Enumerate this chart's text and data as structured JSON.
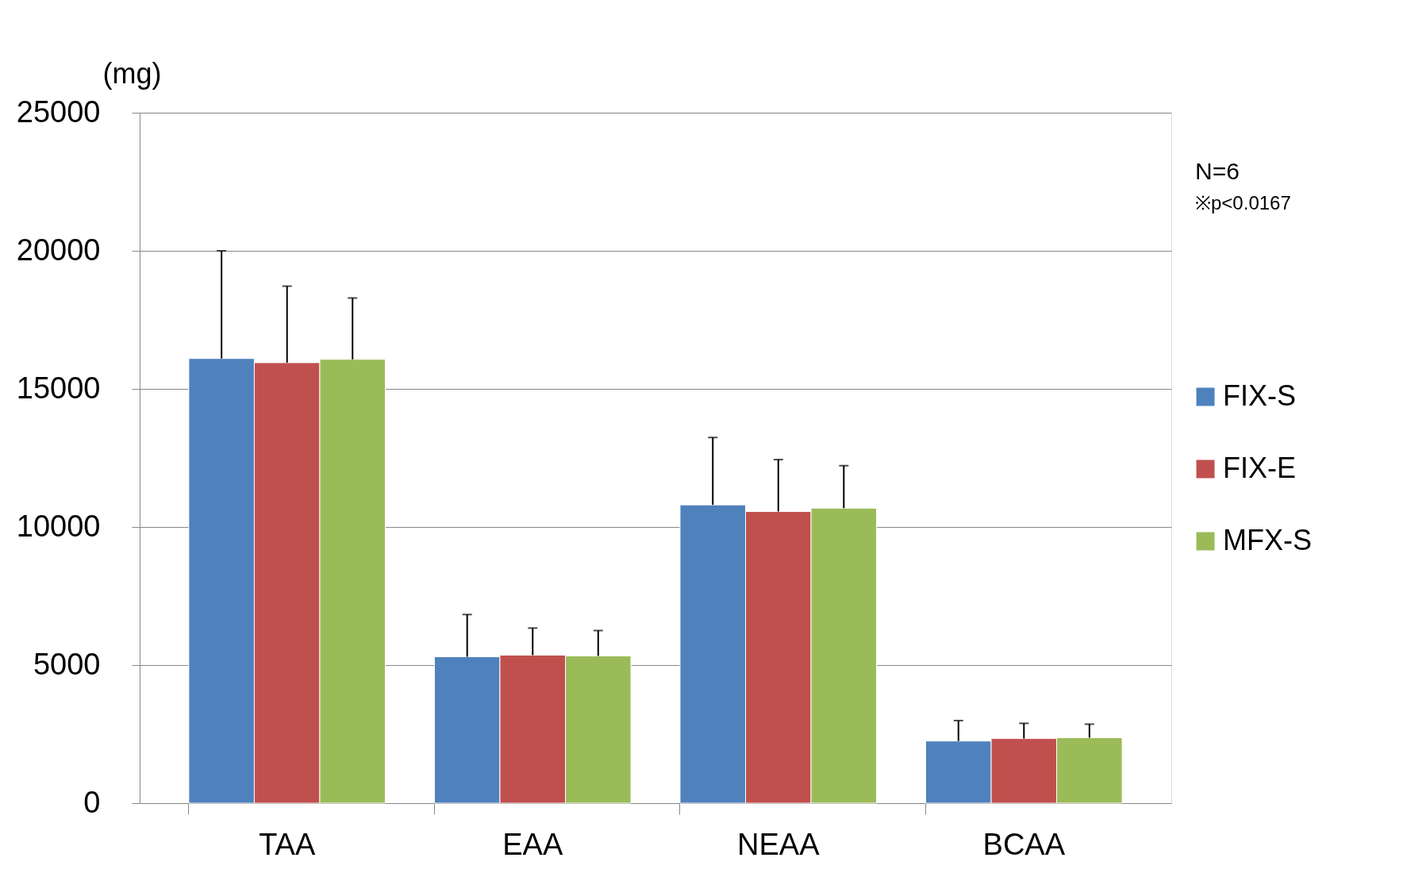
{
  "chart_data": {
    "type": "bar",
    "ylabel": "(mg)",
    "categories": [
      "TAA",
      "EAA",
      "NEAA",
      "BCAA"
    ],
    "series": [
      {
        "name": "FIX-S",
        "color": "#4f81bd",
        "values": [
          16100,
          5300,
          10800,
          2250
        ],
        "errors": [
          3900,
          1530,
          2440,
          740
        ]
      },
      {
        "name": "FIX-E",
        "color": "#c0504d",
        "values": [
          15950,
          5360,
          10560,
          2340
        ],
        "errors": [
          2770,
          980,
          1880,
          550
        ]
      },
      {
        "name": "MFX-S",
        "color": "#9bbb59",
        "values": [
          16070,
          5330,
          10680,
          2370
        ],
        "errors": [
          2220,
          920,
          1540,
          490
        ]
      }
    ],
    "ylim": [
      0,
      25000
    ],
    "yticks": [
      0,
      5000,
      10000,
      15000,
      20000,
      25000
    ],
    "grid": "y",
    "legend": "right",
    "annotations": [
      "N=6",
      "※p<0.0167"
    ]
  }
}
